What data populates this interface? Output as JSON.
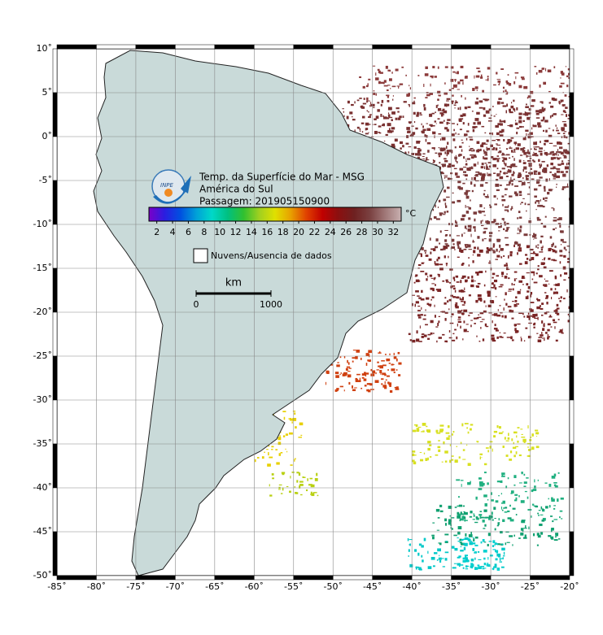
{
  "map": {
    "title_lines": [
      "Temp. da Superfície do Mar - MSG",
      "América do Sul",
      "Passagem: 201905150900"
    ],
    "logo_text": "INPE",
    "xlim": [
      -85,
      -20
    ],
    "ylim": [
      -50,
      10
    ],
    "grid": true,
    "xticks": [
      {
        "value": -85,
        "label": "-85˚"
      },
      {
        "value": -80,
        "label": "-80˚"
      },
      {
        "value": -75,
        "label": "-75˚"
      },
      {
        "value": -70,
        "label": "-70˚"
      },
      {
        "value": -65,
        "label": "-65˚"
      },
      {
        "value": -60,
        "label": "-60˚"
      },
      {
        "value": -55,
        "label": "-55˚"
      },
      {
        "value": -50,
        "label": "-50˚"
      },
      {
        "value": -45,
        "label": "-45˚"
      },
      {
        "value": -40,
        "label": "-40˚"
      },
      {
        "value": -35,
        "label": "-35˚"
      },
      {
        "value": -30,
        "label": "-30˚"
      },
      {
        "value": -25,
        "label": "-25˚"
      },
      {
        "value": -20,
        "label": "-20˚"
      }
    ],
    "yticks": [
      {
        "value": 10,
        "label": "10˚"
      },
      {
        "value": 5,
        "label": "5˚"
      },
      {
        "value": 0,
        "label": "0˚"
      },
      {
        "value": -5,
        "label": "-5˚"
      },
      {
        "value": -10,
        "label": "-10˚"
      },
      {
        "value": -15,
        "label": "-15˚"
      },
      {
        "value": -20,
        "label": "-20˚"
      },
      {
        "value": -25,
        "label": "-25˚"
      },
      {
        "value": -30,
        "label": "-30˚"
      },
      {
        "value": -35,
        "label": "-35˚"
      },
      {
        "value": -40,
        "label": "-40˚"
      },
      {
        "value": -45,
        "label": "-45˚"
      },
      {
        "value": -50,
        "label": "-50˚"
      }
    ],
    "colorbar": {
      "unit": "°C",
      "lim": [
        1,
        33
      ],
      "ticks": [
        2,
        4,
        6,
        8,
        10,
        12,
        14,
        16,
        18,
        20,
        22,
        24,
        26,
        28,
        30,
        32
      ],
      "colors": [
        "#7a00c8",
        "#2a1ee0",
        "#0050e0",
        "#00a0d8",
        "#00d8c8",
        "#00c080",
        "#30c030",
        "#a0d020",
        "#e0e000",
        "#e8a000",
        "#e04000",
        "#c00000",
        "#8b1010",
        "#6e2020",
        "#7a4040",
        "#a07878",
        "#c8b0b0"
      ]
    },
    "legend": "Nuvens/Ausencia de dados",
    "scale_bar": {
      "unit": "km",
      "ticks": [
        0,
        1000
      ]
    }
  }
}
